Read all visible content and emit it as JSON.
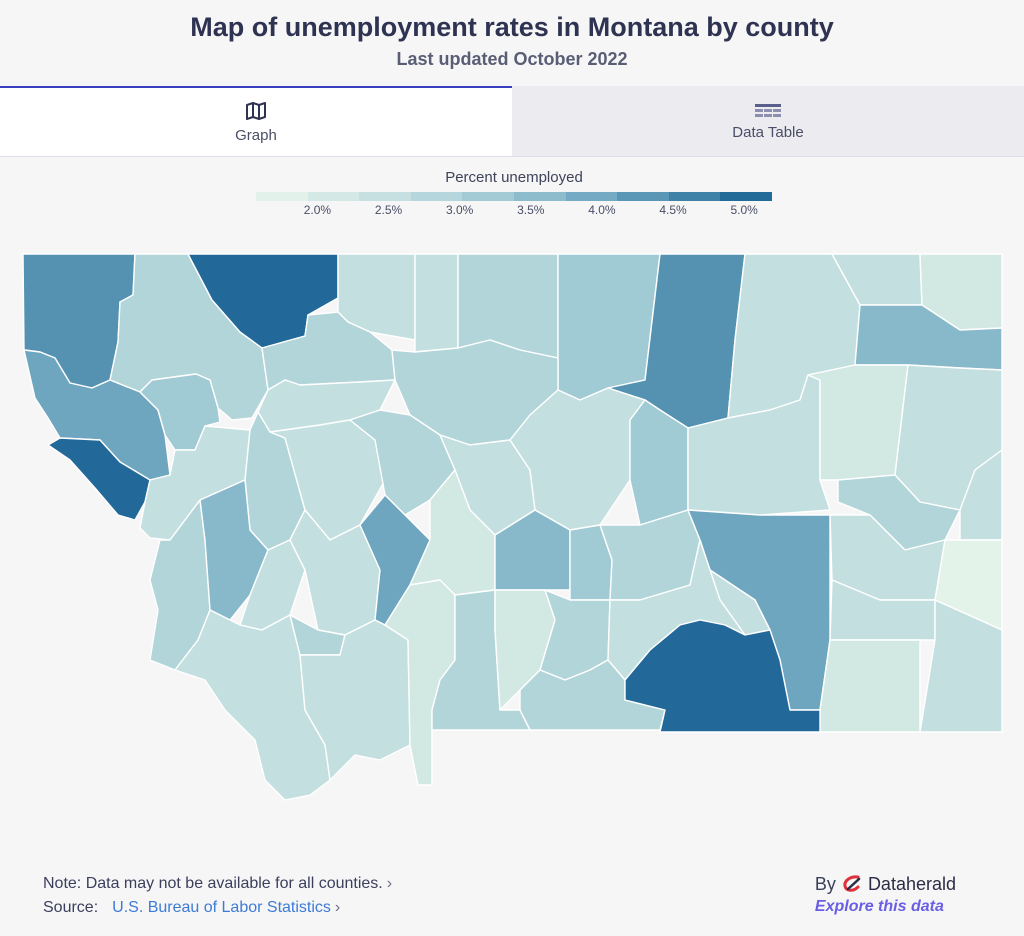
{
  "header": {
    "title": "Map of unemployment rates in Montana by county",
    "subtitle": "Last updated October 2022"
  },
  "tabs": [
    {
      "label": "Graph",
      "icon": "map-icon",
      "active": true
    },
    {
      "label": "Data Table",
      "icon": "table-icon",
      "active": false
    }
  ],
  "legend": {
    "title": "Percent unemployed",
    "ticks": [
      "2.0%",
      "2.5%",
      "3.0%",
      "3.5%",
      "4.0%",
      "4.5%",
      "5.0%"
    ],
    "colors": [
      "#e2f2ea",
      "#d4e9e6",
      "#c6e0e2",
      "#b5d6dd",
      "#a3cbd6",
      "#8dbccd",
      "#74aac3",
      "#5a97b6",
      "#3f82a8",
      "#226b98"
    ]
  },
  "map_colors": {
    "c1": "#e4f3e9",
    "c2": "#d2e8e2",
    "c3": "#c3dfdf",
    "c4": "#b2d5da",
    "c5": "#a0cad4",
    "c6": "#88b9cb",
    "c7": "#6ea5bf",
    "c8": "#5592b2",
    "c9": "#3c7fa5",
    "c10": "#22699a"
  },
  "footer": {
    "note": "Note: Data may not be available for all counties.",
    "source_label": "Source:",
    "source_link": "U.S. Bureau of Labor Statistics",
    "by": "By",
    "brand": "Dataherald",
    "explore": "Explore this data"
  }
}
